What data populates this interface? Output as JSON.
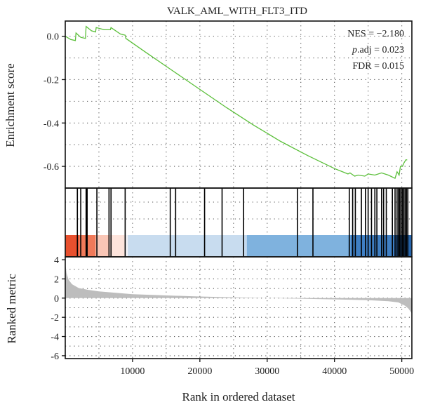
{
  "chart_data": {
    "type": "line",
    "title": "VALK_AML_WITH_FLT3_ITD",
    "xlabel": "Rank in ordered dataset",
    "ylabel_top": "Enrichment score",
    "ylabel_bottom": "Ranked metric",
    "x_ticks": [
      "10000",
      "20000",
      "30000",
      "40000",
      "50000"
    ],
    "x_tick_values": [
      10000,
      20000,
      30000,
      40000,
      50000
    ],
    "xlim": [
      0,
      51500
    ],
    "es_ylim": [
      -0.7,
      0.07
    ],
    "es_ticks": [
      "0.0",
      "-0.2",
      "-0.4",
      "-0.6"
    ],
    "es_tick_values": [
      0.0,
      -0.2,
      -0.4,
      -0.6
    ],
    "metric_ylim": [
      -6.3,
      4.3
    ],
    "metric_ticks": [
      "4",
      "2",
      "0",
      "-2",
      "-4",
      "-6"
    ],
    "metric_tick_values": [
      4,
      2,
      0,
      -2,
      -4,
      -6
    ],
    "stats": {
      "nes": "NES = −2.180",
      "padj_italic": "p",
      "padj_rest": ".adj = 0.023",
      "fdr": "FDR = 0.015"
    },
    "series": [
      {
        "color": "#5bbf3a",
        "x": [
          0,
          800,
          1500,
          1600,
          2300,
          3000,
          3100,
          3900,
          4500,
          4600,
          5800,
          6700,
          6800,
          8200,
          8900,
          9000,
          12000,
          16000,
          20000,
          24000,
          28000,
          32000,
          36000,
          40000,
          42000,
          42300,
          43000,
          43500,
          44500,
          45000,
          46000,
          47000,
          48000,
          49000,
          49300,
          49600,
          49800,
          50100,
          50300,
          50600,
          50800
        ],
        "values": [
          0.0,
          -0.015,
          -0.02,
          0.015,
          -0.005,
          -0.01,
          0.045,
          0.025,
          0.02,
          0.04,
          0.03,
          0.03,
          0.04,
          0.01,
          0.005,
          -0.01,
          -0.075,
          -0.16,
          -0.245,
          -0.33,
          -0.41,
          -0.485,
          -0.55,
          -0.61,
          -0.635,
          -0.63,
          -0.645,
          -0.64,
          -0.645,
          -0.635,
          -0.64,
          -0.63,
          -0.64,
          -0.655,
          -0.625,
          -0.64,
          -0.6,
          -0.6,
          -0.585,
          -0.57,
          -0.57
        ]
      }
    ],
    "hits": [
      1800,
      2300,
      3100,
      3250,
      4700,
      6500,
      6800,
      8900,
      15600,
      16400,
      20700,
      23300,
      26500,
      34500,
      36800,
      42200,
      42700,
      43100,
      44000,
      44600,
      45000,
      45500,
      46000,
      46300,
      47000,
      47300,
      47700,
      48600,
      49000,
      49300,
      49500,
      49700,
      49900,
      50100,
      50300,
      50500,
      50700,
      50900
    ],
    "color_bar_stops": [
      {
        "x": 0,
        "color": "#e8502e"
      },
      {
        "x": 2000,
        "color": "#f07a5a"
      },
      {
        "x": 4500,
        "color": "#f9c6b6"
      },
      {
        "x": 6500,
        "color": "#fde4dc"
      },
      {
        "x": 8800,
        "color": "#f3f3f7"
      },
      {
        "x": 9300,
        "color": "#c8dcef"
      },
      {
        "x": 26800,
        "color": "#bcd4ec"
      },
      {
        "x": 27000,
        "color": "#7fb2de"
      },
      {
        "x": 42000,
        "color": "#6ea6d8"
      },
      {
        "x": 42400,
        "color": "#3f7fc3"
      },
      {
        "x": 49000,
        "color": "#2866ac"
      },
      {
        "x": 51500,
        "color": "#1c4a8e"
      }
    ],
    "ranked_metric": {
      "color": "#bdbdbd",
      "x": [
        0,
        200,
        500,
        1000,
        2000,
        3500,
        5000,
        7500,
        10000,
        15000,
        20000,
        25000,
        30000,
        35000,
        40000,
        45000,
        48000,
        49500,
        50500,
        51000,
        51500
      ],
      "values": [
        3.6,
        2.6,
        1.9,
        1.45,
        1.05,
        0.85,
        0.7,
        0.55,
        0.4,
        0.28,
        0.17,
        0.08,
        0.0,
        -0.06,
        -0.13,
        -0.22,
        -0.33,
        -0.45,
        -0.8,
        -1.1,
        -1.6
      ]
    },
    "grid": true
  }
}
